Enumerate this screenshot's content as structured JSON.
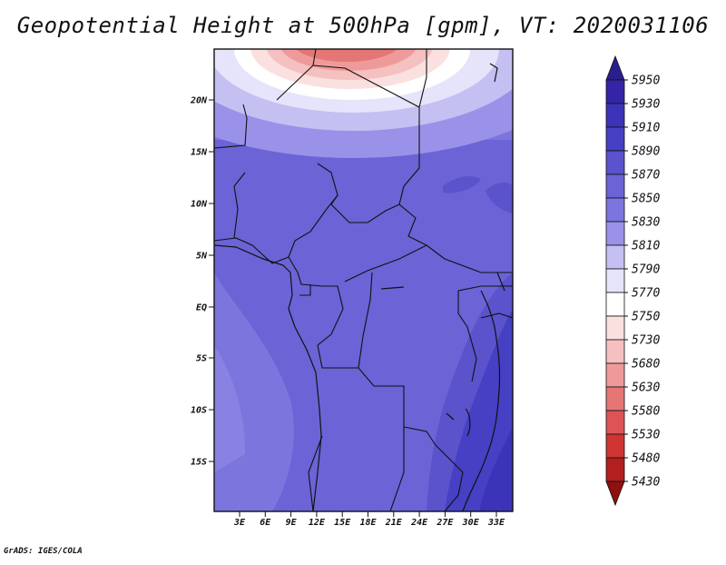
{
  "title": "Geopotential Height at 500hPa [gpm], VT: 2020031106",
  "footer": "GrADS: IGES/COLA",
  "map": {
    "lat_labels": [
      "20N",
      "15N",
      "10N",
      "5N",
      "EQ",
      "5S",
      "10S",
      "15S"
    ],
    "lon_labels": [
      "3E",
      "6E",
      "9E",
      "12E",
      "15E",
      "18E",
      "21E",
      "24E",
      "27E",
      "30E",
      "33E"
    ]
  },
  "colorbar": {
    "levels": [
      "5950",
      "5930",
      "5910",
      "5890",
      "5870",
      "5850",
      "5830",
      "5810",
      "5790",
      "5770",
      "5750",
      "5730",
      "5680",
      "5630",
      "5580",
      "5530",
      "5480",
      "5430"
    ],
    "colors": [
      "#2a1f8c",
      "#3425a6",
      "#3b34b8",
      "#4640c4",
      "#5a53cc",
      "#6c63d6",
      "#7d75de",
      "#9a92e8",
      "#c4c0f2",
      "#e6e4fa",
      "#ffffff",
      "#fbe0e0",
      "#f5c0c0",
      "#ef9a9a",
      "#e57676",
      "#dc5454",
      "#cf3535",
      "#b31f1f",
      "#8f1010"
    ]
  }
}
